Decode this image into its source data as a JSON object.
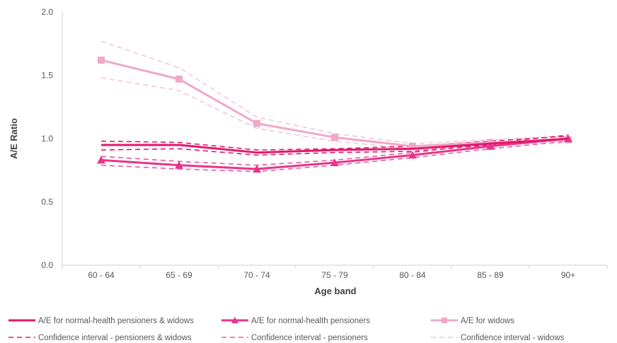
{
  "chart_data": {
    "type": "line",
    "title": "",
    "xlabel": "Age band",
    "ylabel": "A/E Ratio",
    "categories": [
      "60 - 64",
      "65 - 69",
      "70 - 74",
      "75 - 79",
      "80 - 84",
      "85 - 89",
      "90+"
    ],
    "ylim": [
      0,
      2
    ],
    "yticks": [
      "0.0",
      "0.5",
      "1.0",
      "1.5",
      "2.0"
    ],
    "grid": false,
    "legend_position": "bottom",
    "series": [
      {
        "name": "A/E for normal-health pensioners & widows",
        "values": [
          0.95,
          0.95,
          0.89,
          0.91,
          0.92,
          0.96,
          1.0
        ],
        "color": "#e0186c",
        "style": "solid",
        "marker": "none"
      },
      {
        "name": "A/E for normal-health pensioners",
        "values": [
          0.83,
          0.79,
          0.76,
          0.81,
          0.87,
          0.94,
          1.0
        ],
        "color": "#e8348a",
        "style": "solid",
        "marker": "triangle"
      },
      {
        "name": "A/E for widows",
        "values": [
          1.62,
          1.47,
          1.12,
          1.01,
          0.94,
          0.97,
          0.99
        ],
        "color": "#f0a8c9",
        "style": "solid",
        "marker": "square"
      },
      {
        "name": "Confidence interval - pensioners & widows",
        "values": [
          0.98,
          0.97,
          0.91,
          0.92,
          0.94,
          0.98,
          1.02
        ],
        "color": "#e0186c",
        "style": "dashed",
        "marker": "none",
        "show_in_legend": true
      },
      {
        "name": "",
        "values": [
          0.91,
          0.92,
          0.87,
          0.89,
          0.9,
          0.95,
          0.99
        ],
        "color": "#e0186c",
        "style": "dashed",
        "marker": "none",
        "show_in_legend": false
      },
      {
        "name": "Confidence interval - pensioners",
        "values": [
          0.86,
          0.82,
          0.79,
          0.83,
          0.89,
          0.96,
          1.03
        ],
        "color": "#ec5a9e",
        "style": "dashed",
        "marker": "none",
        "show_in_legend": true
      },
      {
        "name": "",
        "values": [
          0.79,
          0.76,
          0.74,
          0.79,
          0.85,
          0.92,
          0.98
        ],
        "color": "#ec5a9e",
        "style": "dashed",
        "marker": "none",
        "show_in_legend": false
      },
      {
        "name": "Confidence interval - widows",
        "values": [
          1.77,
          1.56,
          1.17,
          1.04,
          0.96,
          0.99,
          1.02
        ],
        "color": "#f6c4da",
        "style": "dashed",
        "marker": "none",
        "show_in_legend": true
      },
      {
        "name": "",
        "values": [
          1.48,
          1.38,
          1.08,
          0.98,
          0.92,
          0.95,
          0.97
        ],
        "color": "#f6c4da",
        "style": "dashed",
        "marker": "none",
        "show_in_legend": false
      }
    ]
  }
}
